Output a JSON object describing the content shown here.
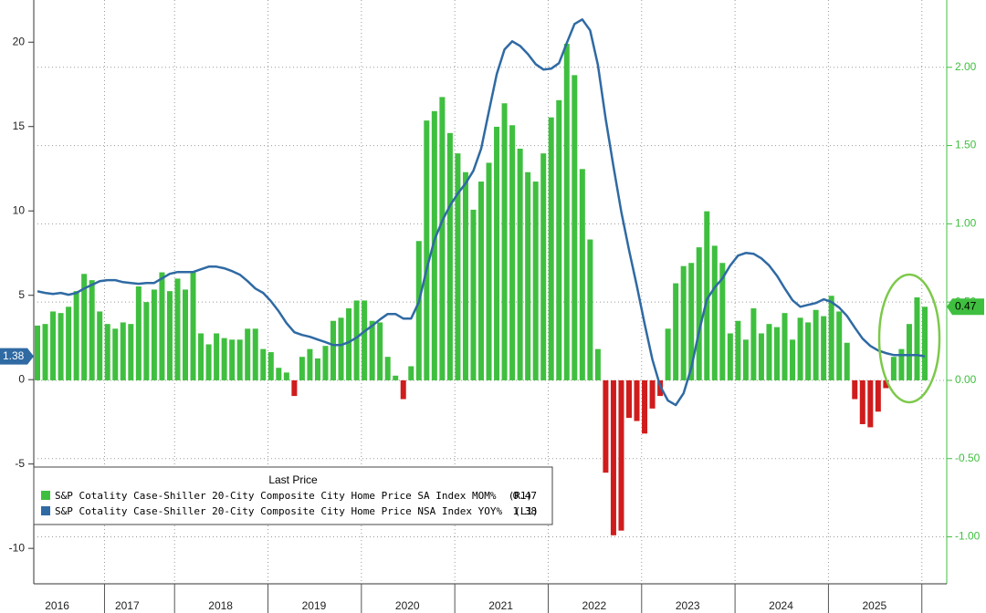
{
  "chart_data": {
    "type": "bar-line",
    "categories": [
      null,
      null,
      null,
      "2016",
      null,
      null,
      null,
      null,
      null,
      null,
      null,
      null,
      "2017",
      null,
      null,
      null,
      null,
      null,
      null,
      null,
      null,
      null,
      null,
      null,
      "2018",
      null,
      null,
      null,
      null,
      null,
      null,
      null,
      null,
      null,
      null,
      null,
      "2019",
      null,
      null,
      null,
      null,
      null,
      null,
      null,
      null,
      null,
      null,
      null,
      "2020",
      null,
      null,
      null,
      null,
      null,
      null,
      null,
      null,
      null,
      null,
      null,
      "2021",
      null,
      null,
      null,
      null,
      null,
      null,
      null,
      null,
      null,
      null,
      null,
      "2022",
      null,
      null,
      null,
      null,
      null,
      null,
      null,
      null,
      null,
      null,
      null,
      "2023",
      null,
      null,
      null,
      null,
      null,
      null,
      null,
      null,
      null,
      null,
      null,
      "2024",
      null,
      null,
      null,
      null,
      null,
      null,
      null,
      null,
      null,
      null,
      null,
      "2025",
      null,
      null,
      null,
      null,
      null,
      null
    ],
    "ylim": [
      -12.1,
      22.5
    ],
    "yticks": [
      -10,
      -5,
      0,
      5,
      10,
      15,
      20
    ],
    "y2lim": [
      -1.3,
      2.43
    ],
    "y2ticks": [
      {
        "value": -1,
        "label": "-1.00"
      },
      {
        "value": -0.5,
        "label": "-0.50"
      },
      {
        "value": 0,
        "label": "0.00"
      },
      {
        "value": 0.5,
        "label": "0.50"
      },
      {
        "value": 1,
        "label": "1.00"
      },
      {
        "value": 1.5,
        "label": "1.50"
      },
      {
        "value": 2,
        "label": "2.00"
      }
    ],
    "grid": true,
    "legend_title": "Last Price",
    "series": [
      {
        "name": "S&P Cotality Case-Shiller 20-City Composite City Home Price SA Index MOM%  (R1)",
        "type": "bar",
        "axis": "y2",
        "color": "#3fbf3f",
        "negative_color": "#d01c1c",
        "values": [
          0.35,
          0.36,
          0.44,
          0.43,
          0.47,
          0.57,
          0.68,
          0.64,
          0.44,
          0.36,
          0.33,
          0.37,
          0.36,
          0.6,
          0.5,
          0.58,
          0.69,
          0.57,
          0.65,
          0.58,
          0.69,
          0.3,
          0.23,
          0.3,
          0.27,
          0.26,
          0.26,
          0.33,
          0.33,
          0.2,
          0.18,
          0.08,
          0.05,
          -0.1,
          0.15,
          0.2,
          0.14,
          0.22,
          0.38,
          0.4,
          0.46,
          0.51,
          0.51,
          0.38,
          0.37,
          0.15,
          0.03,
          -0.12,
          0.09,
          0.89,
          1.66,
          1.72,
          1.81,
          1.58,
          1.45,
          1.33,
          1.09,
          1.27,
          1.39,
          1.62,
          1.77,
          1.63,
          1.48,
          1.33,
          1.27,
          1.45,
          1.68,
          1.79,
          2.15,
          1.95,
          1.35,
          0.9,
          0.2,
          -0.59,
          -0.99,
          -0.96,
          -0.24,
          -0.26,
          -0.34,
          -0.18,
          -0.1,
          0.33,
          0.62,
          0.73,
          0.75,
          0.85,
          1.08,
          0.86,
          0.75,
          0.3,
          0.38,
          0.26,
          0.46,
          0.3,
          0.36,
          0.34,
          0.43,
          0.26,
          0.4,
          0.37,
          0.45,
          0.41,
          0.54,
          0.44,
          0.24,
          -0.12,
          -0.28,
          -0.3,
          -0.2,
          -0.05,
          0.15,
          0.2,
          0.36,
          0.53,
          0.47
        ]
      },
      {
        "name": "S&P Cotality Case-Shiller 20-City Composite City Home Price NSA Index YOY%  (L1)",
        "type": "line",
        "axis": "y",
        "color": "#2f6aa3",
        "values": [
          5.24,
          5.14,
          5.08,
          5.14,
          5.03,
          5.14,
          5.4,
          5.62,
          5.84,
          5.9,
          5.9,
          5.78,
          5.73,
          5.68,
          5.73,
          5.73,
          6.0,
          6.27,
          6.38,
          6.38,
          6.38,
          6.54,
          6.7,
          6.7,
          6.6,
          6.43,
          6.22,
          5.84,
          5.4,
          5.14,
          4.65,
          4.05,
          3.35,
          2.81,
          2.65,
          2.54,
          2.38,
          2.22,
          2.05,
          2.05,
          2.22,
          2.49,
          2.86,
          3.19,
          3.57,
          3.89,
          3.89,
          3.62,
          3.62,
          4.6,
          6.54,
          8.27,
          9.41,
          10.32,
          11.03,
          11.62,
          12.38,
          13.68,
          15.9,
          18.11,
          19.57,
          20.05,
          19.78,
          19.3,
          18.7,
          18.38,
          18.43,
          18.76,
          19.95,
          21.08,
          21.35,
          20.7,
          18.65,
          15.46,
          12.65,
          9.95,
          7.68,
          5.57,
          3.3,
          1.19,
          -0.38,
          -1.24,
          -1.51,
          -0.81,
          0.7,
          2.86,
          4.76,
          5.46,
          6.0,
          6.76,
          7.35,
          7.51,
          7.46,
          7.19,
          6.76,
          6.16,
          5.41,
          4.7,
          4.32,
          4.43,
          4.54,
          4.76,
          4.6,
          4.27,
          3.78,
          3.08,
          2.43,
          2.0,
          1.73,
          1.57,
          1.46,
          1.46,
          1.46,
          1.46,
          1.38
        ]
      }
    ]
  }
}
